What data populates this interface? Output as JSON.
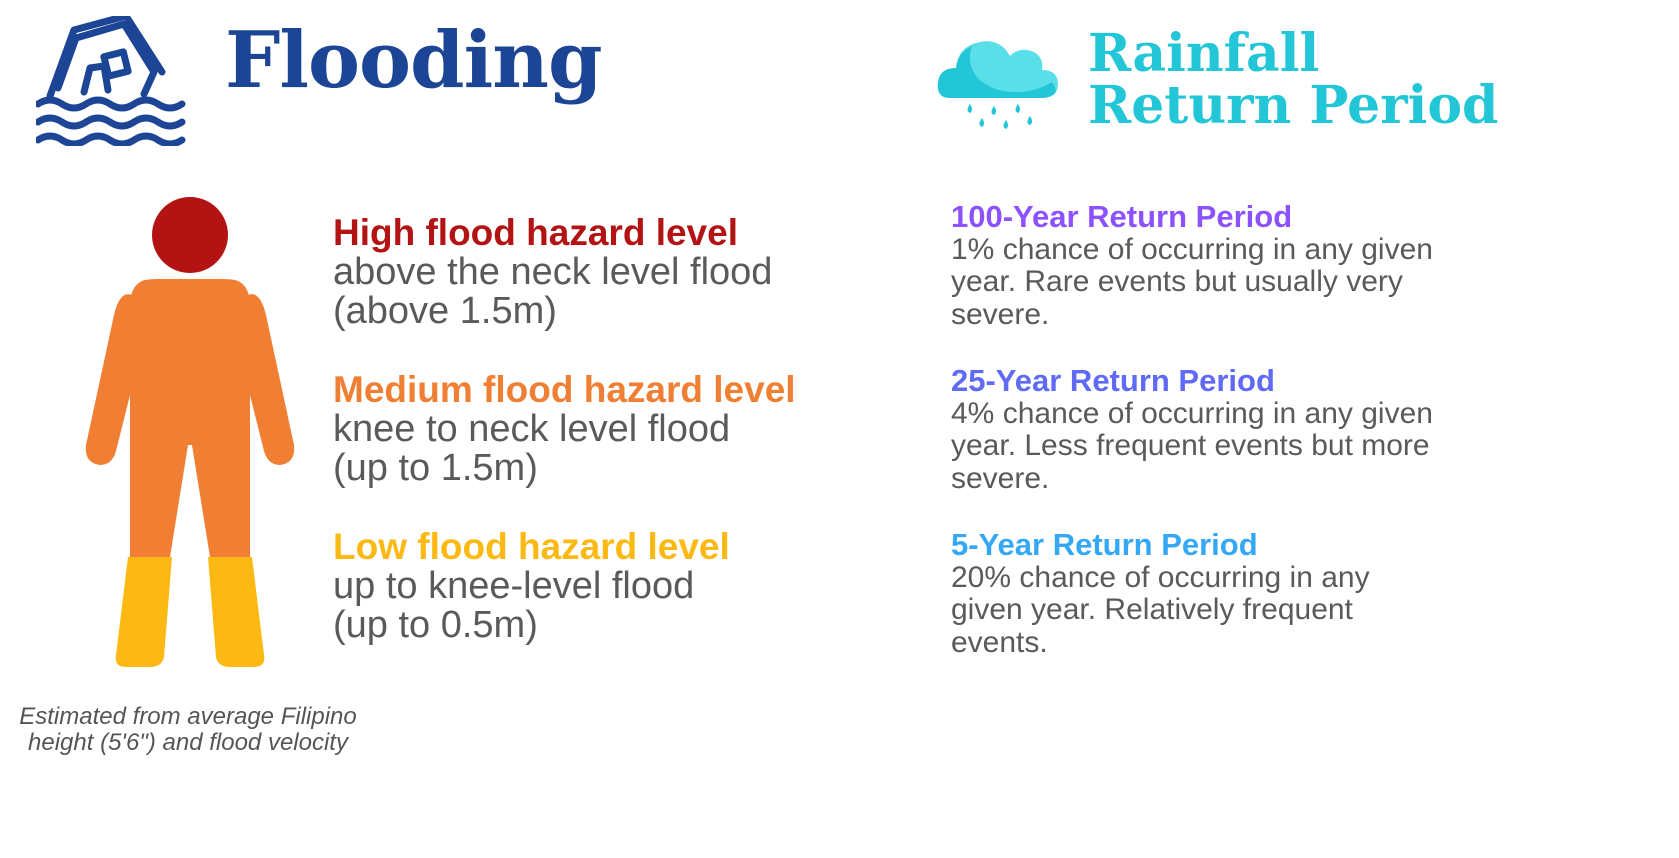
{
  "flooding": {
    "title": "Flooding",
    "icon": "flooded-house-icon",
    "color": "#1c4595"
  },
  "rainfall": {
    "title_line1": "Rainfall",
    "title_line2": "Return Period",
    "icon": "rain-cloud-icon",
    "color": "#22c6d7"
  },
  "hazards": [
    {
      "title": "High flood hazard level",
      "desc": " above the neck level flood\n(above 1.5m)",
      "color": "#b31313"
    },
    {
      "title": "Medium flood hazard level",
      "desc": "knee to neck level flood\n(up to 1.5m)",
      "color": "#f07f33"
    },
    {
      "title": "Low flood hazard level",
      "desc": "up to knee-level flood\n(up to 0.5m)",
      "color": "#fcb913"
    }
  ],
  "note": "Estimated from average Filipino height (5'6\") and flood velocity",
  "return_periods": [
    {
      "title": "100-Year Return Period",
      "desc": " 1% chance of occurring in any given\nyear. Rare events but usually very\nsevere.",
      "color": "#8c52ff"
    },
    {
      "title": "25-Year Return Period",
      "desc": "4% chance of occurring in any given\nyear. Less frequent events but more\nsevere.",
      "color": "#5f6af5"
    },
    {
      "title": "5-Year Return Period",
      "desc": "20% chance of occurring in any\ngiven year. Relatively frequent\nevents.",
      "color": "#35a8f5"
    }
  ]
}
